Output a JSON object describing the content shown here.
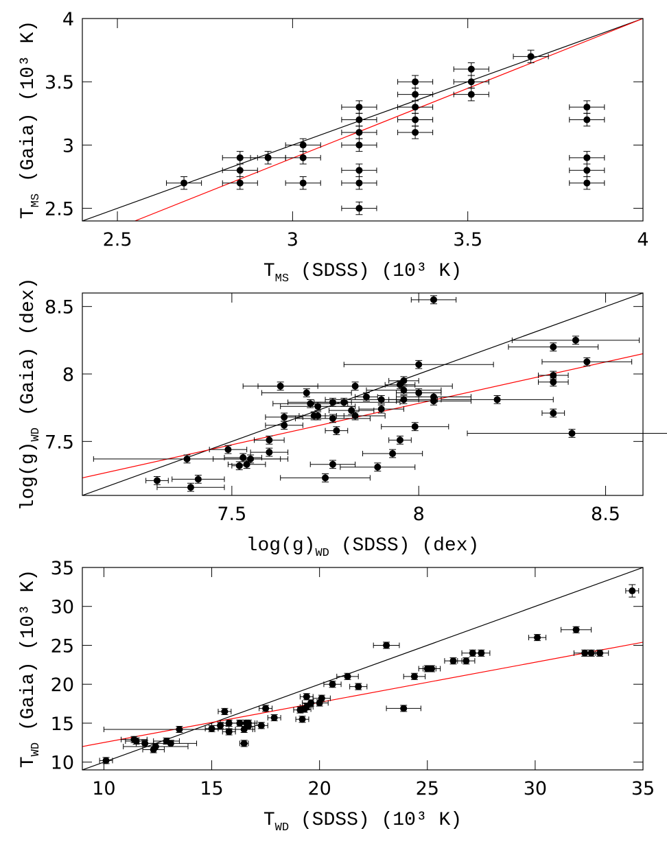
{
  "chart_data": [
    {
      "type": "scatter",
      "xlabel": {
        "main": "T",
        "sub": "MS",
        "tail": " (SDSS) (10³ K)"
      },
      "ylabel": {
        "main": "T",
        "sub": "MS",
        "tail": " (Gaia) (10³ K)"
      },
      "xlim": [
        2.4,
        4
      ],
      "ylim": [
        2.4,
        4
      ],
      "xticks": [
        2.5,
        3,
        3.5,
        4
      ],
      "yticks": [
        2.5,
        3,
        3.5,
        4
      ],
      "color": "#000000",
      "x": [
        2.69,
        2.85,
        2.85,
        2.85,
        2.93,
        3.03,
        3.03,
        3.03,
        3.19,
        3.19,
        3.19,
        3.19,
        3.19,
        3.19,
        3.19,
        3.35,
        3.35,
        3.35,
        3.35,
        3.35,
        3.51,
        3.51,
        3.51,
        3.68,
        3.84,
        3.84,
        3.84,
        3.84,
        3.84
      ],
      "values": [
        2.7,
        2.9,
        2.8,
        2.7,
        2.9,
        3.0,
        2.9,
        2.7,
        3.3,
        3.2,
        3.1,
        3.0,
        2.8,
        2.7,
        2.5,
        3.5,
        3.4,
        3.3,
        3.2,
        3.1,
        3.6,
        3.5,
        3.4,
        3.7,
        3.3,
        3.2,
        2.9,
        2.8,
        2.7
      ],
      "xerr": [
        0.05,
        0.05,
        0.05,
        0.05,
        0.05,
        0.05,
        0.05,
        0.05,
        0.05,
        0.05,
        0.05,
        0.05,
        0.05,
        0.05,
        0.05,
        0.05,
        0.05,
        0.05,
        0.05,
        0.05,
        0.05,
        0.05,
        0.05,
        0.05,
        0.05,
        0.05,
        0.05,
        0.05,
        0.05
      ],
      "yerr": [
        0.05,
        0.05,
        0.05,
        0.05,
        0.05,
        0.05,
        0.05,
        0.05,
        0.05,
        0.05,
        0.05,
        0.05,
        0.05,
        0.05,
        0.05,
        0.05,
        0.05,
        0.05,
        0.05,
        0.05,
        0.05,
        0.05,
        0.05,
        0.05,
        0.05,
        0.05,
        0.05,
        0.05,
        0.05
      ],
      "lines": [
        {
          "color": "#000000",
          "x": [
            2.4,
            4
          ],
          "y": [
            2.4,
            4
          ]
        },
        {
          "color": "#ff0000",
          "x": [
            2.55,
            4
          ],
          "y": [
            2.4,
            4
          ]
        }
      ]
    },
    {
      "type": "scatter",
      "xlabel": {
        "main": "log(g)",
        "sub": "WD",
        "tail": " (SDSS) (dex)"
      },
      "ylabel": {
        "main": "log(g)",
        "sub": "WD",
        "tail": " (Gaia) (dex)"
      },
      "xlim": [
        7.1,
        8.6
      ],
      "ylim": [
        7.1,
        8.6
      ],
      "xticks": [
        7.5,
        8,
        8.5
      ],
      "yticks": [
        7.5,
        8,
        8.5
      ],
      "color": "#000000",
      "x": [
        8.04,
        8.36,
        8.42,
        8.45,
        8.0,
        8.36,
        8.36,
        8.21,
        8.36,
        8.41,
        8.04,
        8.04,
        8.0,
        7.96,
        7.96,
        7.95,
        7.96,
        7.9,
        7.9,
        7.86,
        7.83,
        7.63,
        7.7,
        7.8,
        7.77,
        7.71,
        7.73,
        7.82,
        7.83,
        7.72,
        7.73,
        7.77,
        7.64,
        7.64,
        7.78,
        7.99,
        7.95,
        7.93,
        7.6,
        7.6,
        7.49,
        7.53,
        7.55,
        7.54,
        7.52,
        7.77,
        7.89,
        7.38,
        7.75,
        7.3,
        7.41,
        7.39
      ],
      "values": [
        8.55,
        8.2,
        8.25,
        8.09,
        8.07,
        7.99,
        7.94,
        7.81,
        7.71,
        7.56,
        7.8,
        7.83,
        7.86,
        7.88,
        7.95,
        7.92,
        7.81,
        7.74,
        7.81,
        7.83,
        7.91,
        7.91,
        7.86,
        7.79,
        7.79,
        7.78,
        7.76,
        7.73,
        7.69,
        7.69,
        7.69,
        7.67,
        7.68,
        7.62,
        7.58,
        7.61,
        7.51,
        7.41,
        7.51,
        7.42,
        7.44,
        7.38,
        7.37,
        7.33,
        7.32,
        7.33,
        7.31,
        7.37,
        7.23,
        7.21,
        7.22,
        7.16
      ],
      "xerr": [
        0.06,
        0.12,
        0.17,
        0.12,
        0.2,
        0.04,
        0.04,
        0.15,
        0.03,
        0.28,
        0.1,
        0.1,
        0.06,
        0.1,
        0.04,
        0.04,
        0.04,
        0.06,
        0.15,
        0.03,
        0.26,
        0.1,
        0.12,
        0.15,
        0.05,
        0.1,
        0.1,
        0.06,
        0.08,
        0.08,
        0.05,
        0.1,
        0.05,
        0.05,
        0.03,
        0.09,
        0.03,
        0.08,
        0.04,
        0.05,
        0.05,
        0.05,
        0.1,
        0.05,
        0.02,
        0.06,
        0.1,
        0.25,
        0.12,
        0.03,
        0.07,
        0.09
      ],
      "yerr": [
        0.03,
        0.03,
        0.03,
        0.03,
        0.03,
        0.03,
        0.03,
        0.03,
        0.03,
        0.03,
        0.03,
        0.03,
        0.03,
        0.03,
        0.03,
        0.03,
        0.03,
        0.03,
        0.03,
        0.03,
        0.03,
        0.03,
        0.03,
        0.03,
        0.03,
        0.03,
        0.03,
        0.03,
        0.03,
        0.03,
        0.03,
        0.03,
        0.03,
        0.03,
        0.03,
        0.03,
        0.03,
        0.03,
        0.03,
        0.03,
        0.03,
        0.03,
        0.03,
        0.03,
        0.03,
        0.03,
        0.03,
        0.03,
        0.03,
        0.03,
        0.03,
        0.03
      ],
      "lines": [
        {
          "color": "#000000",
          "x": [
            7.1,
            8.6
          ],
          "y": [
            7.1,
            8.6
          ]
        },
        {
          "color": "#ff0000",
          "x": [
            7.1,
            8.6
          ],
          "y": [
            7.23,
            8.15
          ]
        }
      ]
    },
    {
      "type": "scatter",
      "xlabel": {
        "main": "T",
        "sub": "WD",
        "tail": " (SDSS) (10³ K)"
      },
      "ylabel": {
        "main": "T",
        "sub": "WD",
        "tail": " (Gaia) (10³ K)"
      },
      "xlim": [
        9,
        35
      ],
      "ylim": [
        9,
        35
      ],
      "xticks": [
        10,
        15,
        20,
        25,
        30,
        35
      ],
      "yticks": [
        10,
        15,
        20,
        25,
        30,
        35
      ],
      "color": "#000000",
      "x": [
        10.1,
        11.4,
        11.5,
        11.9,
        12.3,
        12.4,
        12.9,
        13.1,
        13.5,
        15.0,
        15.4,
        15.6,
        15.8,
        15.8,
        16.3,
        16.5,
        16.5,
        16.6,
        16.7,
        16.7,
        17.3,
        17.5,
        17.9,
        19.2,
        19.1,
        19.3,
        19.4,
        19.4,
        19.6,
        20.0,
        20.1,
        20.6,
        21.3,
        21.8,
        23.1,
        23.9,
        24.4,
        25.0,
        25.2,
        26.2,
        26.8,
        27.1,
        27.5,
        30.1,
        31.9,
        32.3,
        32.6,
        33.0,
        34.5
      ],
      "values": [
        10.2,
        12.9,
        12.7,
        12.4,
        11.6,
        12.0,
        12.7,
        12.4,
        14.2,
        14.3,
        14.7,
        16.5,
        15.0,
        13.9,
        15.0,
        12.4,
        14.2,
        15.0,
        14.6,
        15.0,
        14.7,
        16.9,
        15.7,
        15.5,
        16.7,
        16.8,
        17.1,
        18.4,
        17.6,
        17.6,
        18.2,
        20.0,
        21.0,
        19.7,
        25.0,
        16.9,
        21.0,
        22.0,
        22.0,
        23.0,
        23.0,
        24.0,
        24.0,
        26.0,
        27.0,
        24.0,
        24.0,
        24.0,
        32.0
      ],
      "xerr": [
        0.3,
        0.6,
        0.5,
        0.4,
        0.5,
        1.5,
        0.6,
        1.2,
        3.5,
        0.3,
        0.4,
        0.3,
        0.4,
        0.3,
        0.4,
        0.2,
        0.4,
        0.4,
        0.3,
        0.4,
        0.3,
        0.3,
        0.3,
        0.3,
        0.3,
        0.3,
        0.3,
        0.3,
        0.4,
        0.4,
        0.4,
        0.4,
        0.5,
        0.4,
        0.6,
        0.8,
        0.5,
        0.4,
        0.4,
        0.4,
        0.4,
        0.5,
        0.4,
        0.4,
        0.7,
        0.5,
        0.4,
        0.4,
        0.3
      ],
      "yerr": [
        0.4,
        0.4,
        0.4,
        0.4,
        0.4,
        0.4,
        0.4,
        0.4,
        0.4,
        0.4,
        0.4,
        0.4,
        0.4,
        0.4,
        0.4,
        0.4,
        0.4,
        0.4,
        0.4,
        0.4,
        0.4,
        0.4,
        0.4,
        0.4,
        0.4,
        0.4,
        0.4,
        0.4,
        0.4,
        0.4,
        0.4,
        0.4,
        0.4,
        0.4,
        0.4,
        0.4,
        0.4,
        0.4,
        0.4,
        0.4,
        0.4,
        0.4,
        0.4,
        0.4,
        0.4,
        0.4,
        0.4,
        0.4,
        0.8
      ],
      "lines": [
        {
          "color": "#000000",
          "x": [
            9,
            35
          ],
          "y": [
            9,
            35
          ]
        },
        {
          "color": "#ff0000",
          "x": [
            9,
            35
          ],
          "y": [
            12.0,
            25.4
          ]
        }
      ]
    }
  ]
}
